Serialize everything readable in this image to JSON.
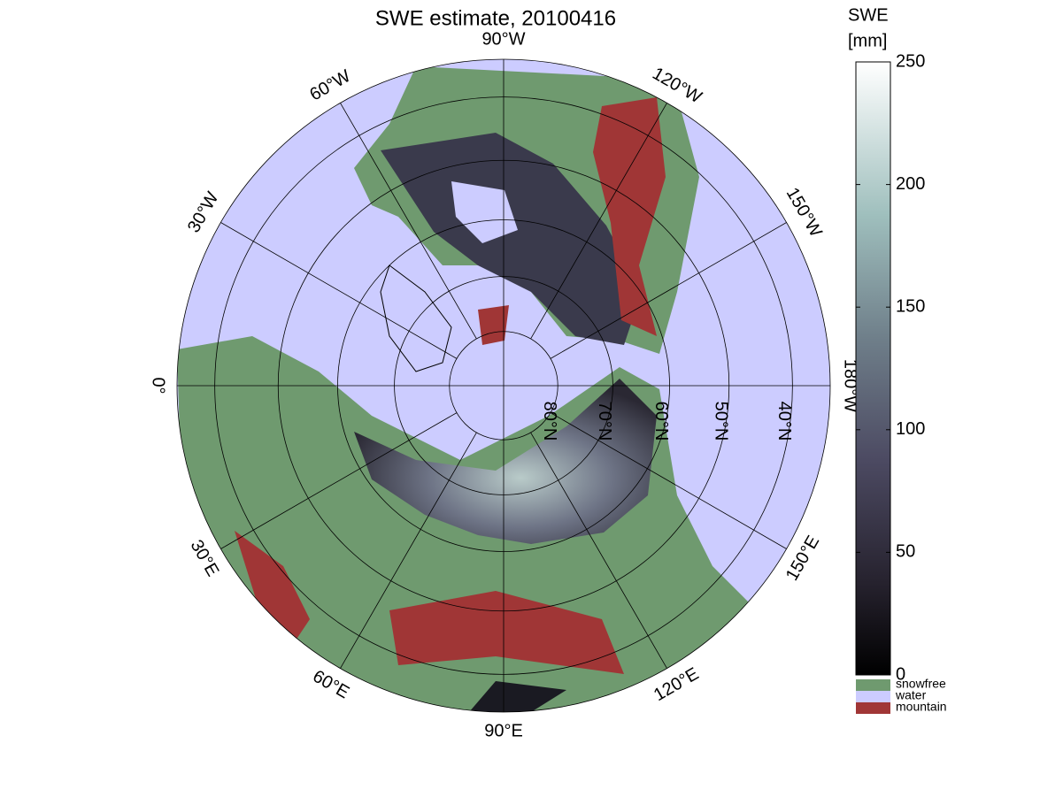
{
  "title": "SWE estimate, 20100416",
  "map": {
    "meridian_labels": [
      "0°",
      "30°E",
      "60°E",
      "90°E",
      "120°E",
      "150°E",
      "180°W",
      "150°W",
      "120°W",
      "90°W",
      "60°W",
      "30°W"
    ],
    "latitude_labels": [
      "80°N",
      "70°N",
      "60°N",
      "50°N",
      "40°N"
    ],
    "latitude_circles": [
      80,
      70,
      60,
      50,
      40
    ],
    "outer_latitude": 34.4
  },
  "colorbar": {
    "title": [
      "SWE",
      "[mm]"
    ],
    "lim": [
      0,
      250
    ],
    "ticks": [
      0,
      50,
      100,
      150,
      200,
      250
    ]
  },
  "legend": [
    {
      "label": "snowfree",
      "color": "#6f9a6f"
    },
    {
      "label": "water",
      "color": "#ccccff"
    },
    {
      "label": "mountain",
      "color": "#a03636"
    }
  ]
}
